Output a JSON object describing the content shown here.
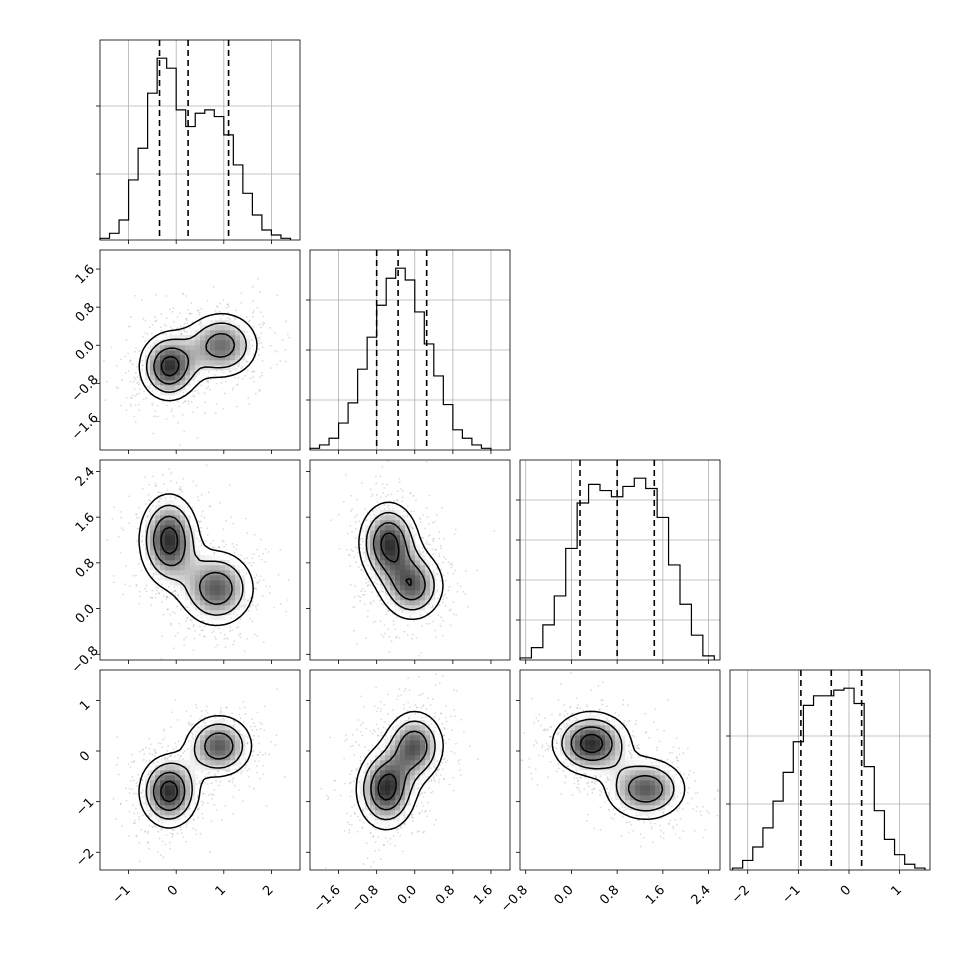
{
  "chart_data": {
    "type": "corner",
    "parameters": [
      {
        "index": 0,
        "range": [
          -1.6,
          2.6
        ],
        "ticks": [
          -1,
          0,
          1,
          2
        ],
        "tick_labels": [
          "−1",
          "0",
          "1",
          "2"
        ],
        "quantiles": [
          -0.35,
          0.25,
          1.1
        ],
        "hist": {
          "edges": [
            -1.6,
            -1.4,
            -1.2,
            -1.0,
            -0.8,
            -0.6,
            -0.4,
            -0.2,
            0.0,
            0.2,
            0.4,
            0.6,
            0.8,
            1.0,
            1.2,
            1.4,
            1.6,
            1.8,
            2.0,
            2.2,
            2.4
          ],
          "values": [
            0.1,
            0.4,
            1.2,
            3.6,
            5.5,
            8.8,
            10.9,
            10.3,
            7.8,
            6.8,
            7.6,
            7.8,
            7.4,
            6.3,
            4.5,
            2.8,
            1.5,
            0.6,
            0.3,
            0.1
          ]
        },
        "hist_ticks": [
          0.33,
          0.67
        ]
      },
      {
        "index": 1,
        "range": [
          -2.2,
          2.0
        ],
        "ticks": [
          -1.6,
          -0.8,
          0.0,
          0.8,
          1.6
        ],
        "tick_labels": [
          "−1.6",
          "−0.8",
          "0.0",
          "0.8",
          "1.6"
        ],
        "quantiles": [
          -0.8,
          -0.35,
          0.25
        ],
        "hist": {
          "edges": [
            -2.2,
            -2.0,
            -1.8,
            -1.6,
            -1.4,
            -1.2,
            -1.0,
            -0.8,
            -0.6,
            -0.4,
            -0.2,
            0.0,
            0.2,
            0.4,
            0.6,
            0.8,
            1.0,
            1.2,
            1.4,
            1.6
          ],
          "values": [
            0.1,
            0.3,
            0.7,
            1.6,
            2.8,
            4.8,
            6.7,
            8.6,
            10.2,
            10.8,
            10.1,
            8.2,
            6.3,
            4.4,
            2.7,
            1.2,
            0.7,
            0.3,
            0.1
          ]
        },
        "hist_ticks": [
          0.25,
          0.5,
          0.75
        ]
      },
      {
        "index": 2,
        "range": [
          -0.9,
          2.6
        ],
        "ticks": [
          -0.8,
          0.0,
          0.8,
          1.6,
          2.4
        ],
        "tick_labels": [
          "−0.8",
          "0.0",
          "0.8",
          "1.6",
          "2.4"
        ],
        "quantiles": [
          0.15,
          0.8,
          1.45
        ],
        "hist": {
          "edges": [
            -0.9,
            -0.7,
            -0.5,
            -0.3,
            -0.1,
            0.1,
            0.3,
            0.5,
            0.7,
            0.9,
            1.1,
            1.3,
            1.5,
            1.7,
            1.9,
            2.1,
            2.3,
            2.5
          ],
          "values": [
            0.1,
            0.6,
            1.7,
            3.1,
            5.4,
            7.6,
            8.5,
            8.2,
            7.9,
            8.4,
            8.8,
            8.3,
            6.9,
            4.6,
            2.7,
            1.2,
            0.2
          ]
        },
        "hist_ticks": [
          0.2,
          0.4,
          0.6,
          0.8
        ]
      },
      {
        "index": 3,
        "range": [
          -2.35,
          1.6
        ],
        "ticks": [
          -2,
          -1,
          0,
          1
        ],
        "tick_labels": [
          "−2",
          "−1",
          "0",
          "1"
        ],
        "quantiles": [
          -0.95,
          -0.35,
          0.25
        ],
        "hist": {
          "edges": [
            -2.3,
            -2.1,
            -1.9,
            -1.7,
            -1.5,
            -1.3,
            -1.1,
            -0.9,
            -0.7,
            -0.5,
            -0.3,
            -0.1,
            0.1,
            0.3,
            0.5,
            0.7,
            0.9,
            1.1,
            1.3,
            1.5
          ],
          "values": [
            0.1,
            0.5,
            1.2,
            2.2,
            3.6,
            5.1,
            6.7,
            8.6,
            9.1,
            9.1,
            9.4,
            9.5,
            8.7,
            5.4,
            3.1,
            1.6,
            0.8,
            0.3,
            0.1
          ]
        },
        "hist_ticks": [
          0.33,
          0.67
        ]
      }
    ],
    "pairs": [
      {
        "x": 0,
        "y": 1,
        "modes": [
          {
            "cx": -0.15,
            "cy": -0.45,
            "sx": 0.35,
            "sy": 0.4,
            "w": 1.0
          },
          {
            "cx": 0.95,
            "cy": 0.0,
            "sx": 0.45,
            "sy": 0.4,
            "w": 0.8
          }
        ]
      },
      {
        "x": 0,
        "y": 2,
        "modes": [
          {
            "cx": -0.15,
            "cy": 1.2,
            "sx": 0.35,
            "sy": 0.45,
            "w": 1.0
          },
          {
            "cx": 0.85,
            "cy": 0.35,
            "sx": 0.45,
            "sy": 0.38,
            "w": 0.85
          }
        ]
      },
      {
        "x": 1,
        "y": 2,
        "modes": [
          {
            "cx": -0.55,
            "cy": 1.15,
            "sx": 0.35,
            "sy": 0.4,
            "w": 1.0
          },
          {
            "cx": -0.05,
            "cy": 0.4,
            "sx": 0.38,
            "sy": 0.35,
            "w": 0.85
          }
        ]
      },
      {
        "x": 0,
        "y": 3,
        "modes": [
          {
            "cx": -0.15,
            "cy": -0.8,
            "sx": 0.35,
            "sy": 0.4,
            "w": 1.0
          },
          {
            "cx": 0.9,
            "cy": 0.1,
            "sx": 0.4,
            "sy": 0.35,
            "w": 0.85
          }
        ]
      },
      {
        "x": 1,
        "y": 3,
        "modes": [
          {
            "cx": -0.6,
            "cy": -0.75,
            "sx": 0.35,
            "sy": 0.45,
            "w": 1.0
          },
          {
            "cx": 0.0,
            "cy": 0.1,
            "sx": 0.35,
            "sy": 0.4,
            "w": 0.85
          }
        ]
      },
      {
        "x": 2,
        "y": 3,
        "modes": [
          {
            "cx": 0.35,
            "cy": 0.15,
            "sx": 0.38,
            "sy": 0.35,
            "w": 1.0
          },
          {
            "cx": 1.3,
            "cy": -0.75,
            "sx": 0.4,
            "sy": 0.35,
            "w": 0.85
          }
        ]
      }
    ],
    "grid": true,
    "legend": "none"
  }
}
